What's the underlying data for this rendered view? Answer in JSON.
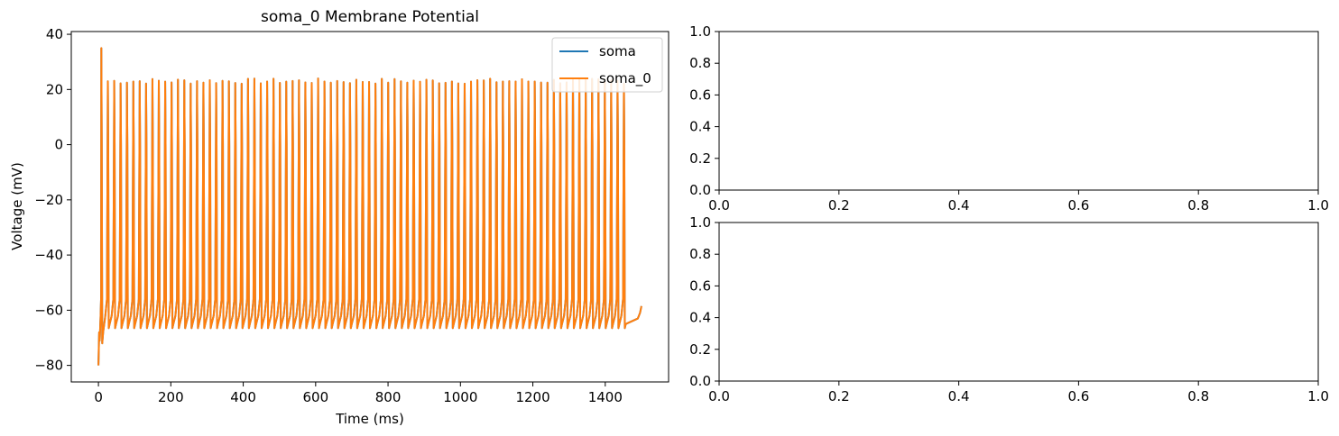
{
  "colors": {
    "soma": "#1f77b4",
    "soma_0": "#ff7f0e",
    "axes": "#000000",
    "background": "#ffffff"
  },
  "chart_data": [
    {
      "type": "line",
      "title": "soma_0 Membrane Potential",
      "xlabel": "Time (ms)",
      "ylabel": "Voltage (mV)",
      "xlim": [
        -75,
        1575
      ],
      "ylim": [
        -86,
        41
      ],
      "xticks": [
        0,
        200,
        400,
        600,
        800,
        1000,
        1200,
        1400
      ],
      "yticks": [
        -80,
        -60,
        -40,
        -20,
        0,
        20,
        40
      ],
      "x_tick_labels": [
        "0",
        "200",
        "400",
        "600",
        "800",
        "1000",
        "1200",
        "1400"
      ],
      "y_tick_labels": [
        "−80",
        "−60",
        "−40",
        "−20",
        "0",
        "20",
        "40"
      ],
      "legend_position": "top-right",
      "series": [
        {
          "name": "soma",
          "color": "#1f77b4",
          "trace": {
            "t_start": 0,
            "t_end": 1500,
            "v_rest": -80,
            "first_spike_time": 8,
            "first_spike_peak": 35,
            "spike_count": 83,
            "spike_period": 17.6,
            "spike_peak_range": [
              22,
              24
            ],
            "trough": -66.5,
            "final_value": -58.5
          }
        },
        {
          "name": "soma_0",
          "color": "#ff7f0e",
          "trace": {
            "t_start": 0,
            "t_end": 1500,
            "v_rest": -80,
            "first_spike_time": 8,
            "first_spike_peak": 35,
            "spike_count": 83,
            "spike_period": 17.6,
            "spike_peak_range": [
              22,
              24
            ],
            "trough": -66.5,
            "final_value": -58.5
          }
        }
      ]
    },
    {
      "type": "line",
      "title": "",
      "xlim": [
        0,
        1
      ],
      "ylim": [
        0,
        1
      ],
      "xticks": [
        0,
        0.2,
        0.4,
        0.6,
        0.8,
        1
      ],
      "yticks": [
        0,
        0.2,
        0.4,
        0.6,
        0.8,
        1
      ],
      "x_tick_labels": [
        "0.0",
        "0.2",
        "0.4",
        "0.6",
        "0.8",
        "1.0"
      ],
      "y_tick_labels": [
        "0.0",
        "0.2",
        "0.4",
        "0.6",
        "0.8",
        "1.0"
      ],
      "series": []
    },
    {
      "type": "line",
      "title": "",
      "xlim": [
        0,
        1
      ],
      "ylim": [
        0,
        1
      ],
      "xticks": [
        0,
        0.2,
        0.4,
        0.6,
        0.8,
        1
      ],
      "yticks": [
        0,
        0.2,
        0.4,
        0.6,
        0.8,
        1
      ],
      "x_tick_labels": [
        "0.0",
        "0.2",
        "0.4",
        "0.6",
        "0.8",
        "1.0"
      ],
      "y_tick_labels": [
        "0.0",
        "0.2",
        "0.4",
        "0.6",
        "0.8",
        "1.0"
      ],
      "series": []
    }
  ]
}
